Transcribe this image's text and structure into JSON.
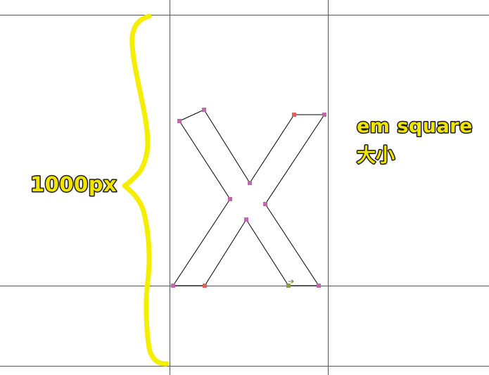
{
  "annotations": {
    "height_label": "1000px",
    "em_square_label": "em square",
    "size_label": "大小"
  },
  "colors": {
    "guide_line": "#555555",
    "outline": "#000000",
    "brace": "#f5ee00",
    "label_fill": "#f2e400",
    "label_stroke": "#1a1a1a",
    "point_on_curve": "#c266b0",
    "point_start": "#e0605a",
    "point_direction": "#8c9a4a"
  },
  "icons": {
    "brace": "curly-brace-icon",
    "direction_marker": "direction-arrow-icon"
  }
}
